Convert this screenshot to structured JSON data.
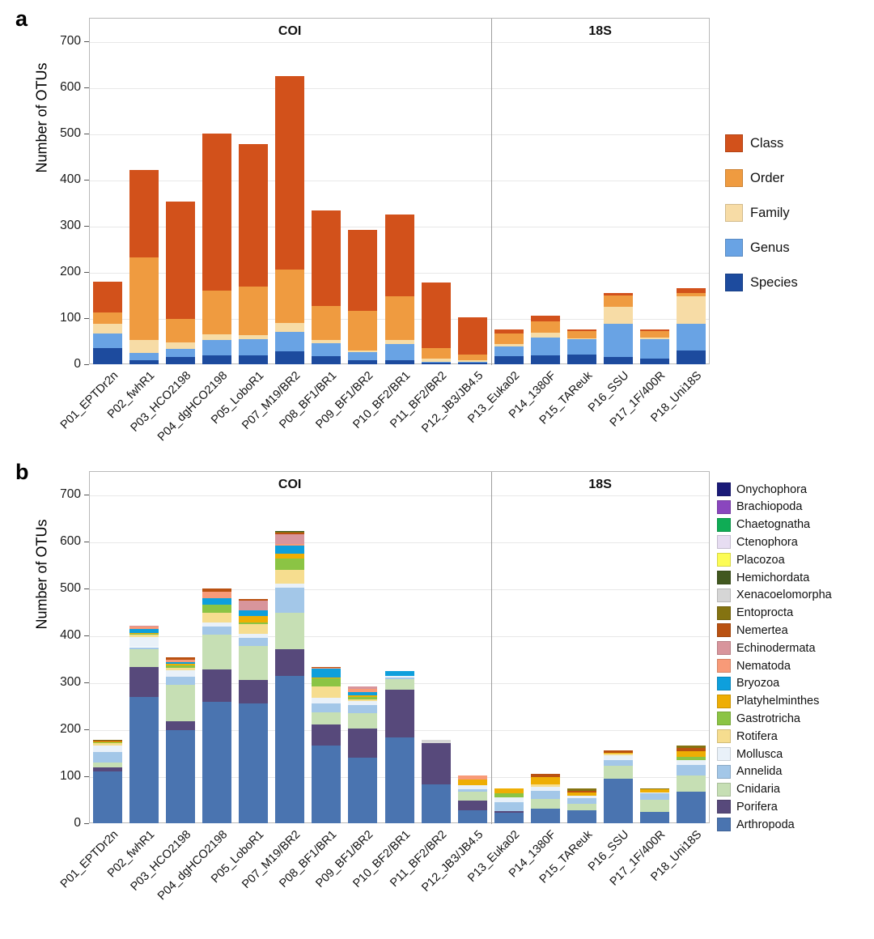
{
  "figure": {
    "panel_letters": [
      "a",
      "b"
    ]
  },
  "chart_data": [
    {
      "type": "bar",
      "stacked": true,
      "panel_letter": "a",
      "ylabel": "Number of OTUs",
      "xlabel": "",
      "ylim": [
        0,
        750
      ],
      "yticks": [
        0,
        100,
        200,
        300,
        400,
        500,
        600,
        700
      ],
      "grid": true,
      "legend_position": "right",
      "facet_labels": [
        "COI",
        "18S"
      ],
      "facet_split_index": 11,
      "categories": [
        "P01_EPTDr2n",
        "P02_fwhR1",
        "P03_HCO2198",
        "P04_dgHCO2198",
        "P05_LoboR1",
        "P07_M19/BR2",
        "P08_BF1/BR1",
        "P09_BF1/BR2",
        "P10_BF2/BR1",
        "P11_BF2/BR2",
        "P12_JB3/JB4.5",
        "P13_Euka02",
        "P14_1380F",
        "P15_TAReuk",
        "P16_SSU",
        "P17_1F/400R",
        "P18_Uni18S"
      ],
      "series_note": "series listed bottom-to-top of stack; legend shown top-to-bottom is the reverse",
      "series": [
        {
          "name": "Species",
          "color": "#1D4B9E",
          "values": [
            35,
            8,
            15,
            20,
            20,
            28,
            17,
            9,
            9,
            3,
            3,
            17,
            20,
            21,
            16,
            12,
            30
          ]
        },
        {
          "name": "Genus",
          "color": "#69A3E4",
          "values": [
            32,
            16,
            18,
            32,
            35,
            42,
            29,
            17,
            34,
            3,
            2,
            21,
            38,
            33,
            71,
            42,
            57
          ]
        },
        {
          "name": "Family",
          "color": "#F7DCA6",
          "values": [
            20,
            28,
            15,
            12,
            8,
            20,
            6,
            4,
            9,
            6,
            4,
            5,
            11,
            2,
            37,
            3,
            60
          ]
        },
        {
          "name": "Order",
          "color": "#EF9B40",
          "values": [
            25,
            180,
            50,
            95,
            105,
            115,
            75,
            86,
            95,
            23,
            12,
            23,
            23,
            15,
            25,
            15,
            8
          ]
        },
        {
          "name": "Class",
          "color": "#D2511B",
          "values": [
            66,
            189,
            255,
            341,
            309,
            418,
            206,
            175,
            178,
            142,
            80,
            9,
            13,
            4,
            6,
            3,
            10
          ]
        }
      ],
      "totals": [
        178,
        421,
        353,
        500,
        477,
        623,
        333,
        291,
        325,
        177,
        101,
        75,
        105,
        75,
        155,
        75,
        165
      ]
    },
    {
      "type": "bar",
      "stacked": true,
      "panel_letter": "b",
      "ylabel": "Number of OTUs",
      "xlabel": "",
      "ylim": [
        0,
        750
      ],
      "yticks": [
        0,
        100,
        200,
        300,
        400,
        500,
        600,
        700
      ],
      "grid": true,
      "legend_position": "right",
      "facet_labels": [
        "COI",
        "18S"
      ],
      "facet_split_index": 11,
      "categories": [
        "P01_EPTDr2n",
        "P02_fwhR1",
        "P03_HCO2198",
        "P04_dgHCO2198",
        "P05_LoboR1",
        "P07_M19/BR2",
        "P08_BF1/BR1",
        "P09_BF1/BR2",
        "P10_BF2/BR1",
        "P11_BF2/BR2",
        "P12_JB3/JB4.5",
        "P13_Euka02",
        "P14_1380F",
        "P15_TAReuk",
        "P16_SSU",
        "P17_1F/400R",
        "P18_Uni18S"
      ],
      "series_note": "series listed bottom-to-top of stack; legend shown top-to-bottom is the reverse",
      "series": [
        {
          "name": "Arthropoda",
          "color": "#4A74B0",
          "values": [
            111,
            269,
            199,
            259,
            256,
            313,
            165,
            140,
            182,
            82,
            28,
            23,
            31,
            27,
            94,
            25,
            68
          ]
        },
        {
          "name": "Porifera",
          "color": "#57497B",
          "values": [
            8,
            64,
            18,
            68,
            50,
            57,
            46,
            62,
            102,
            88,
            21,
            3,
            0,
            0,
            0,
            0,
            0
          ]
        },
        {
          "name": "Cnidaria",
          "color": "#C6DFB4",
          "values": [
            10,
            38,
            78,
            74,
            71,
            78,
            26,
            32,
            23,
            0,
            18,
            0,
            20,
            15,
            28,
            25,
            34
          ]
        },
        {
          "name": "Annelida",
          "color": "#A3C7E8",
          "values": [
            22,
            4,
            17,
            18,
            18,
            53,
            18,
            17,
            3,
            0,
            5,
            19,
            18,
            11,
            13,
            13,
            22
          ]
        },
        {
          "name": "Mollusca",
          "color": "#E9F1F9",
          "values": [
            14,
            22,
            14,
            9,
            8,
            10,
            13,
            9,
            3,
            0,
            9,
            10,
            8,
            5,
            9,
            3,
            11
          ]
        },
        {
          "name": "Rotifera",
          "color": "#F6DD8F",
          "values": [
            5,
            4,
            5,
            20,
            21,
            29,
            23,
            3,
            0,
            0,
            0,
            0,
            5,
            0,
            4,
            0,
            0
          ]
        },
        {
          "name": "Gastrotricha",
          "color": "#8BC444",
          "values": [
            3,
            2,
            5,
            17,
            4,
            24,
            17,
            6,
            0,
            0,
            0,
            8,
            0,
            0,
            0,
            0,
            6
          ]
        },
        {
          "name": "Platyhelminthes",
          "color": "#EEAE04",
          "values": [
            2,
            2,
            4,
            0,
            14,
            10,
            2,
            4,
            0,
            0,
            12,
            12,
            16,
            8,
            2,
            7,
            12
          ]
        },
        {
          "name": "Bryozoa",
          "color": "#0E9FDC",
          "values": [
            0,
            8,
            3,
            15,
            12,
            17,
            19,
            6,
            12,
            0,
            0,
            0,
            0,
            0,
            0,
            0,
            0
          ]
        },
        {
          "name": "Nematoda",
          "color": "#F89A78",
          "values": [
            0,
            6,
            6,
            13,
            0,
            4,
            2,
            8,
            0,
            0,
            8,
            0,
            0,
            0,
            0,
            0,
            0
          ]
        },
        {
          "name": "Echinodermata",
          "color": "#D8959C",
          "values": [
            0,
            2,
            0,
            0,
            20,
            21,
            0,
            4,
            0,
            0,
            0,
            0,
            0,
            0,
            0,
            0,
            0
          ]
        },
        {
          "name": "Nemertea",
          "color": "#B95111",
          "values": [
            1,
            0,
            4,
            7,
            3,
            3,
            2,
            0,
            0,
            0,
            0,
            0,
            7,
            3,
            5,
            0,
            7
          ]
        },
        {
          "name": "Entoprocta",
          "color": "#847311",
          "values": [
            2,
            0,
            0,
            0,
            0,
            2,
            0,
            0,
            0,
            0,
            0,
            0,
            0,
            6,
            0,
            2,
            5
          ]
        },
        {
          "name": "Xenacoelomorpha",
          "color": "#D6D6D6",
          "values": [
            0,
            0,
            0,
            0,
            0,
            0,
            0,
            0,
            0,
            7,
            0,
            0,
            0,
            0,
            0,
            0,
            0
          ]
        },
        {
          "name": "Hemichordata",
          "color": "#41581F",
          "values": [
            0,
            0,
            0,
            0,
            0,
            2,
            0,
            0,
            0,
            0,
            0,
            0,
            0,
            0,
            0,
            0,
            0
          ]
        },
        {
          "name": "Placozoa",
          "color": "#FCFC55",
          "values": [
            0,
            0,
            0,
            0,
            0,
            0,
            0,
            0,
            0,
            0,
            0,
            0,
            0,
            0,
            0,
            0,
            0
          ]
        },
        {
          "name": "Ctenophora",
          "color": "#E7DDF2",
          "values": [
            0,
            0,
            0,
            0,
            0,
            0,
            0,
            0,
            0,
            0,
            0,
            0,
            0,
            0,
            0,
            0,
            0
          ]
        },
        {
          "name": "Chaetognatha",
          "color": "#0FAC55",
          "values": [
            0,
            0,
            0,
            0,
            0,
            0,
            0,
            0,
            0,
            0,
            0,
            0,
            0,
            0,
            0,
            0,
            0
          ]
        },
        {
          "name": "Brachiopoda",
          "color": "#8A46BE",
          "values": [
            0,
            0,
            0,
            0,
            0,
            0,
            0,
            0,
            0,
            0,
            0,
            0,
            0,
            0,
            0,
            0,
            0
          ]
        },
        {
          "name": "Onychophora",
          "color": "#1A1A78",
          "values": [
            0,
            0,
            0,
            0,
            0,
            0,
            0,
            0,
            0,
            0,
            0,
            0,
            0,
            0,
            0,
            0,
            0
          ]
        }
      ],
      "totals": [
        178,
        421,
        353,
        500,
        477,
        623,
        333,
        291,
        325,
        177,
        101,
        75,
        105,
        75,
        155,
        75,
        165
      ]
    }
  ]
}
